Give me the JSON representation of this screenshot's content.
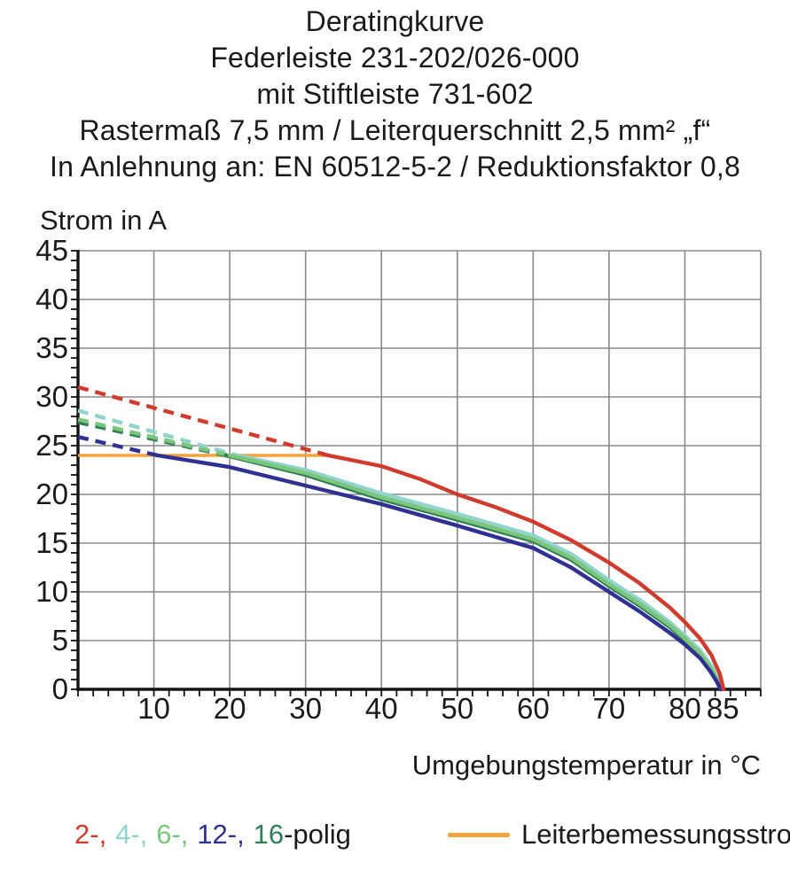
{
  "title_lines": [
    "Deratingkurve",
    "Federleiste 231-202/026-000",
    "mit Stiftleiste 731-602",
    "Rastermaß 7,5 mm / Leiterquerschnitt 2,5 mm² „f“",
    "In Anlehnung an: EN 60512-5-2 / Reduktionsfaktor 0,8"
  ],
  "y_axis_label": "Strom in A",
  "x_axis_label": "Umgebungstemperatur in °C",
  "legend": {
    "poles_parts": [
      {
        "text": "2-,",
        "color": "#cf3b2d"
      },
      {
        "text": "4-,",
        "color": "#92d3cd"
      },
      {
        "text": "6-,",
        "color": "#7cc67c"
      },
      {
        "text": "12-,",
        "color": "#2e3192"
      },
      {
        "text": "16",
        "color": "#2f7e55"
      },
      {
        "text": "-polig",
        "color": "#1a1a1a"
      }
    ],
    "rated_label": "Leiterbemessungsstrom",
    "rated_color": "#f2a43a"
  },
  "chart_data": {
    "type": "line",
    "title": "Deratingkurve",
    "xlabel": "Umgebungstemperatur in °C",
    "ylabel": "Strom in A",
    "xlim": [
      0,
      90
    ],
    "ylim": [
      0,
      45
    ],
    "x_ticks": [
      10,
      20,
      30,
      40,
      50,
      60,
      70,
      80,
      85
    ],
    "y_ticks": [
      45,
      40,
      35,
      30,
      25,
      20,
      15,
      10,
      5,
      0
    ],
    "x_minor_step": 2,
    "y_minor_step": 1,
    "grid": true,
    "grid_color": "#8a8a8a",
    "axis_color": "#151515",
    "note": "dashed = above rated conductor current, solid = derated operating curve",
    "rated_line": {
      "name": "Leiterbemessungsstrom",
      "color": "#f2a43a",
      "value": 24,
      "x_start": 0,
      "x_end": 33
    },
    "series": [
      {
        "name": "2-polig",
        "poles": 2,
        "color": "#cf3b2d",
        "dashed": [
          [
            0,
            31
          ],
          [
            33,
            24
          ]
        ],
        "solid": [
          [
            33,
            24
          ],
          [
            40,
            22.9
          ],
          [
            45,
            21.6
          ],
          [
            50,
            20.0
          ],
          [
            55,
            18.7
          ],
          [
            60,
            17.2
          ],
          [
            65,
            15.3
          ],
          [
            70,
            13.0
          ],
          [
            74,
            10.9
          ],
          [
            78,
            8.4
          ],
          [
            80,
            6.9
          ],
          [
            82,
            5.2
          ],
          [
            83.5,
            3.5
          ],
          [
            84.6,
            1.6
          ],
          [
            85.1,
            0
          ]
        ]
      },
      {
        "name": "4-polig",
        "poles": 4,
        "color": "#92d3cd",
        "dashed": [
          [
            0,
            28.6
          ],
          [
            21,
            24
          ]
        ],
        "solid": [
          [
            21,
            24
          ],
          [
            30,
            22.5
          ],
          [
            40,
            20.1
          ],
          [
            50,
            18.0
          ],
          [
            60,
            15.8
          ],
          [
            65,
            13.9
          ],
          [
            70,
            11.2
          ],
          [
            74,
            9.2
          ],
          [
            78,
            6.9
          ],
          [
            80,
            5.5
          ],
          [
            82,
            4.0
          ],
          [
            83.5,
            2.4
          ],
          [
            84.4,
            1.0
          ],
          [
            84.9,
            0
          ]
        ]
      },
      {
        "name": "6-polig",
        "poles": 6,
        "color": "#7cc67c",
        "dashed": [
          [
            0,
            27.7
          ],
          [
            20,
            24
          ]
        ],
        "solid": [
          [
            20,
            24
          ],
          [
            30,
            22.2
          ],
          [
            40,
            19.7
          ],
          [
            50,
            17.6
          ],
          [
            60,
            15.4
          ],
          [
            65,
            13.5
          ],
          [
            70,
            10.8
          ],
          [
            74,
            8.8
          ],
          [
            78,
            6.6
          ],
          [
            80,
            5.2
          ],
          [
            82,
            3.7
          ],
          [
            83.5,
            2.1
          ],
          [
            84.3,
            0.9
          ],
          [
            84.8,
            0
          ]
        ]
      },
      {
        "name": "12-polig",
        "poles": 12,
        "color": "#2e3192",
        "dashed": [
          [
            0,
            25.9
          ],
          [
            10.5,
            24
          ]
        ],
        "solid": [
          [
            10.5,
            24
          ],
          [
            20,
            22.8
          ],
          [
            30,
            20.9
          ],
          [
            40,
            19.0
          ],
          [
            50,
            16.8
          ],
          [
            60,
            14.5
          ],
          [
            65,
            12.5
          ],
          [
            70,
            10.0
          ],
          [
            74,
            8.0
          ],
          [
            78,
            5.8
          ],
          [
            80,
            4.6
          ],
          [
            82,
            3.2
          ],
          [
            83.3,
            1.9
          ],
          [
            84.2,
            0.8
          ],
          [
            84.7,
            0
          ]
        ]
      },
      {
        "name": "16-polig",
        "poles": 16,
        "color": "#2f7e55",
        "dashed": [
          [
            0,
            27.4
          ],
          [
            19.5,
            24
          ]
        ],
        "solid": [
          [
            19.5,
            24
          ],
          [
            30,
            22.0
          ],
          [
            40,
            19.5
          ],
          [
            50,
            17.4
          ],
          [
            60,
            15.2
          ],
          [
            65,
            13.3
          ],
          [
            70,
            10.6
          ],
          [
            74,
            8.6
          ],
          [
            78,
            6.4
          ],
          [
            80,
            5.0
          ],
          [
            82,
            3.5
          ],
          [
            83.4,
            2.0
          ],
          [
            84.2,
            0.8
          ],
          [
            84.7,
            0
          ]
        ]
      }
    ]
  }
}
